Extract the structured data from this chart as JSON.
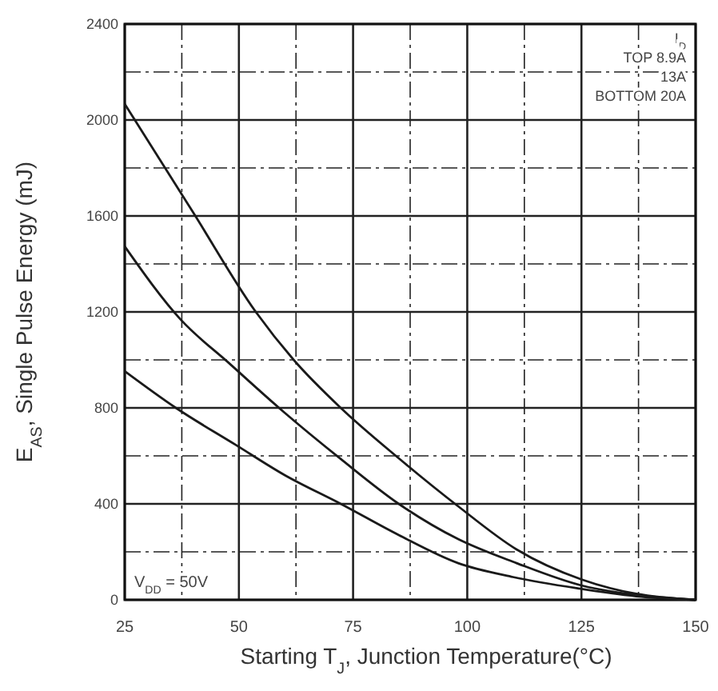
{
  "chart_data": {
    "type": "line",
    "xlabel": "Starting T$_{J}$, Junction Temperature(°C)",
    "ylabel": "E$_{AS}$, Single Pulse Energy (mJ)",
    "xlim": [
      25,
      150
    ],
    "ylim": [
      0,
      2400
    ],
    "xticks": [
      25,
      {
        "value": 37.5,
        "label": null
      },
      50,
      {
        "value": 62.5,
        "label": null
      },
      75,
      {
        "value": 87.5,
        "label": null
      },
      100,
      {
        "value": 112.5,
        "label": null
      },
      125,
      {
        "value": 137.5,
        "label": null
      },
      150
    ],
    "yticks": [
      0,
      {
        "value": 200,
        "label": null
      },
      400,
      {
        "value": 600,
        "label": null
      },
      800,
      {
        "value": 1000,
        "label": null
      },
      1200,
      {
        "value": 1400,
        "label": null
      },
      1600,
      {
        "value": 1800,
        "label": null
      },
      2000,
      {
        "value": 2200,
        "label": null
      },
      2400
    ],
    "grid": true,
    "marker": "none",
    "line_style": "solid",
    "series": [
      {
        "color": "#1a1a1a",
        "x": [
          25,
          40,
          53.7,
          62,
          72.3,
          85,
          98,
          110.8,
          125,
          137,
          150
        ],
        "values": [
          2067,
          1614,
          1200,
          1000,
          800,
          590,
          390,
          210,
          85,
          25,
          0
        ]
      },
      {
        "color": "#1a1a1a",
        "x": [
          25,
          37.3,
          47.8,
          60,
          72.3,
          85,
          98,
          110.8,
          125,
          137,
          150
        ],
        "values": [
          1473,
          1167,
          987,
          780,
          587,
          400,
          253,
          153,
          60,
          20,
          0
        ]
      },
      {
        "color": "#1a1a1a",
        "x": [
          25,
          36.2,
          49.2,
          60,
          72.3,
          85,
          98,
          110,
          124.5,
          137,
          150
        ],
        "values": [
          953,
          800,
          647,
          520,
          400,
          270,
          153,
          95,
          47,
          15,
          0
        ]
      }
    ],
    "annotations": [
      "I$_{D}$",
      "TOP 8.9A",
      "13A",
      "BOTTOM 20A",
      "V$_{DD}$ = 50V"
    ]
  }
}
